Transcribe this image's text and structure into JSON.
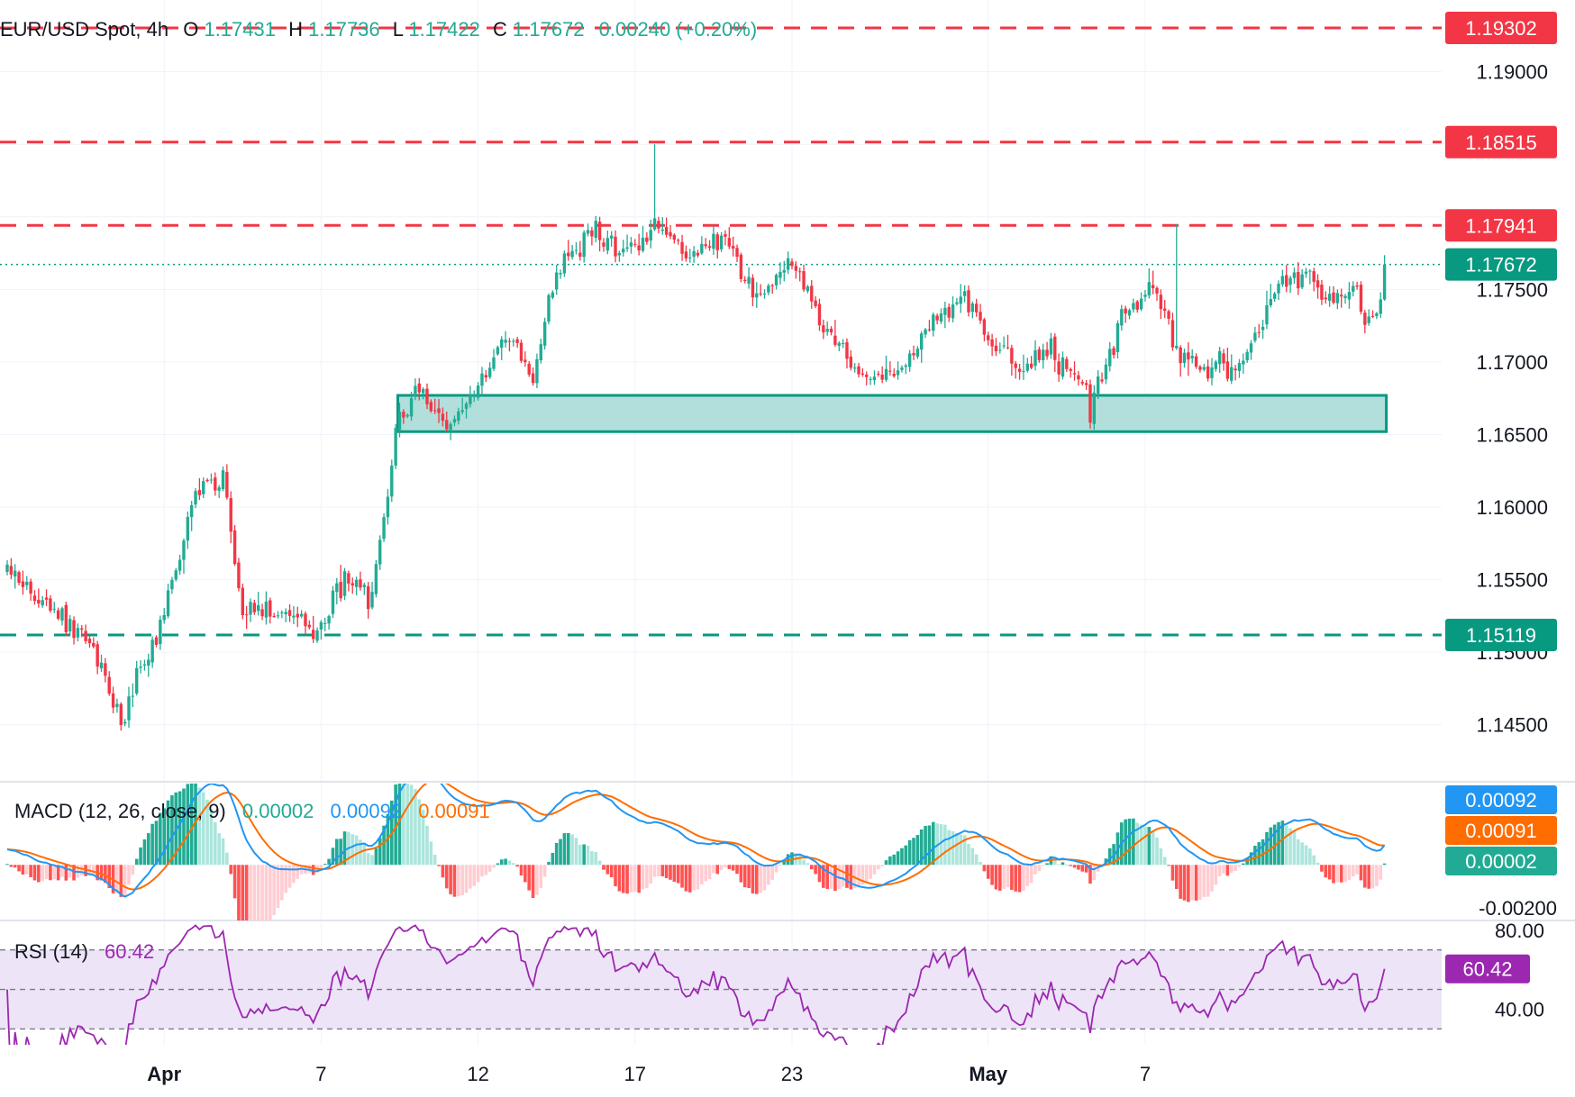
{
  "header": {
    "symbol": "EUR/USD Spot, 4h",
    "o_label": "O",
    "o_value": "1.17431",
    "h_label": "H",
    "h_value": "1.17736",
    "l_label": "L",
    "l_value": "1.17422",
    "c_label": "C",
    "c_value": "1.17672",
    "change": "0.00240 (+0.20%)"
  },
  "colors": {
    "up": "#22ab94",
    "down": "#f23645",
    "macd": "#2196f3",
    "signal": "#ff6d00",
    "hist_up_strong": "#22ab94",
    "hist_up_weak": "#ace5dc",
    "hist_down_strong": "#ff5252",
    "hist_down_weak": "#ffcdd2",
    "rsi": "#9c27b0",
    "rsi_band": "#ede4f7",
    "zone_fill": "#b2dfdb",
    "zone_stroke": "#089981"
  },
  "chart_data": [
    {
      "type": "candlestick",
      "title": "EUR/USD Spot, 4h",
      "ylim": [
        1.1405,
        1.1955
      ],
      "y_ticks": [
        "1.14500",
        "1.15000",
        "1.15500",
        "1.16000",
        "1.16500",
        "1.17000",
        "1.17500",
        "1.19000"
      ],
      "x_ticks": [
        "Apr",
        "7",
        "12",
        "17",
        "23",
        "May",
        "7"
      ],
      "anchor_points": [
        [
          0,
          1.156
        ],
        [
          10,
          1.1535
        ],
        [
          20,
          1.151
        ],
        [
          29,
          1.1455
        ],
        [
          38,
          1.151
        ],
        [
          44,
          1.157
        ],
        [
          48,
          1.161
        ],
        [
          55,
          1.162
        ],
        [
          60,
          1.1525
        ],
        [
          68,
          1.153
        ],
        [
          74,
          1.1525
        ],
        [
          79,
          1.151
        ],
        [
          86,
          1.1555
        ],
        [
          92,
          1.1535
        ],
        [
          100,
          1.166
        ],
        [
          105,
          1.1685
        ],
        [
          112,
          1.1655
        ],
        [
          122,
          1.169
        ],
        [
          128,
          1.172
        ],
        [
          134,
          1.169
        ],
        [
          140,
          1.1765
        ],
        [
          150,
          1.179
        ],
        [
          158,
          1.1775
        ],
        [
          167,
          1.1795
        ],
        [
          173,
          1.177
        ],
        [
          183,
          1.1785
        ],
        [
          190,
          1.1745
        ],
        [
          200,
          1.177
        ],
        [
          208,
          1.172
        ],
        [
          218,
          1.169
        ],
        [
          227,
          1.169
        ],
        [
          236,
          1.173
        ],
        [
          243,
          1.1745
        ],
        [
          251,
          1.1715
        ],
        [
          259,
          1.1695
        ],
        [
          265,
          1.171
        ],
        [
          273,
          1.169
        ],
        [
          276,
          1.1665
        ],
        [
          284,
          1.173
        ],
        [
          292,
          1.175
        ],
        [
          296,
          1.172
        ],
        [
          304,
          1.1695
        ],
        [
          313,
          1.17
        ],
        [
          321,
          1.173
        ],
        [
          324,
          1.176
        ],
        [
          332,
          1.176
        ],
        [
          336,
          1.174
        ],
        [
          343,
          1.175
        ],
        [
          346,
          1.173
        ],
        [
          351,
          1.1745
        ]
      ],
      "levels": [
        {
          "value": 1.19302,
          "label": "1.19302",
          "style": "dashed",
          "color": "#f23645"
        },
        {
          "value": 1.18515,
          "label": "1.18515",
          "style": "dashed",
          "color": "#f23645"
        },
        {
          "value": 1.17941,
          "label": "1.17941",
          "style": "dashed",
          "color": "#f23645"
        },
        {
          "value": 1.17672,
          "label": "1.17672",
          "style": "dotted",
          "color": "#089981"
        },
        {
          "value": 1.15119,
          "label": "1.15119",
          "style": "dashed",
          "color": "#089981"
        }
      ],
      "zone": {
        "from_index": 100,
        "to_index": 351,
        "low": 1.1652,
        "high": 1.1677
      }
    },
    {
      "type": "line",
      "title": "MACD (12, 26, close, 9)",
      "values_text": [
        "0.00002",
        "0.00092",
        "0.00091"
      ],
      "ylim": [
        -0.0026,
        0.0038
      ],
      "y_ticks": [
        "-0.00200"
      ],
      "tags": [
        {
          "label": "0.00092",
          "value": 0.00092,
          "color": "#2196f3"
        },
        {
          "label": "0.00091",
          "value": 0.00091,
          "color": "#ff6d00"
        },
        {
          "label": "0.00002",
          "value": 2e-05,
          "color": "#22ab94"
        }
      ]
    },
    {
      "type": "line",
      "title": "RSI (14)",
      "value_text": "60.42",
      "ylim": [
        22,
        84
      ],
      "band": [
        30,
        70
      ],
      "mid": 50,
      "y_ticks": [
        "80.00",
        "40.00"
      ],
      "tag": {
        "label": "60.42",
        "value": 60.42
      }
    }
  ]
}
